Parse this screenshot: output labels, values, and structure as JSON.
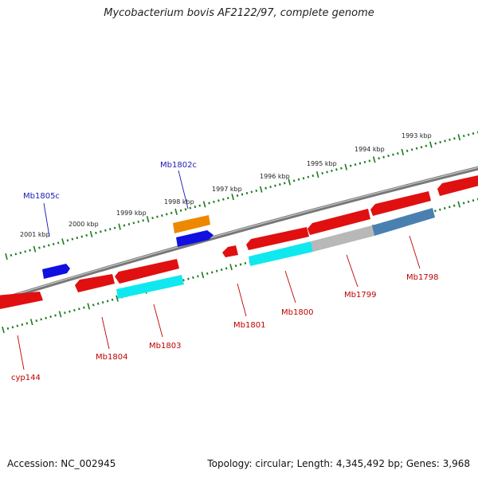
{
  "title": "Mycobacterium bovis AF2122/97, complete genome",
  "footer": {
    "accession": "Accession: NC_002945",
    "stats": "Topology: circular; Length: 4,345,492 bp; Genes: 3,968"
  },
  "colors": {
    "background": "#ffffff",
    "backbone": "#777777",
    "scale_ticks": "#1e7a1e",
    "cds_red": "#e01010",
    "cds_blue": "#1010e0",
    "cds_orange": "#ee8800",
    "cds_cyan": "#10e8f0",
    "cds_gray": "#b8b8b8",
    "cds_steel": "#4a80b0",
    "label_blue": "#1a1ab0",
    "label_red": "#c00000"
  },
  "scale": {
    "kbp_labels": [
      "2001 kbp",
      "2000 kbp",
      "1999 kbp",
      "1998 kbp",
      "1997 kbp",
      "1996 kbp",
      "1995 kbp",
      "1994 kbp",
      "1993 kbp"
    ]
  },
  "genes": {
    "forward_labels": [
      "Mb1805c",
      "Mb1802c"
    ],
    "reverse_labels": [
      "cyp144",
      "Mb1804",
      "Mb1803",
      "Mb1801",
      "Mb1800",
      "Mb1799",
      "Mb1798"
    ]
  }
}
